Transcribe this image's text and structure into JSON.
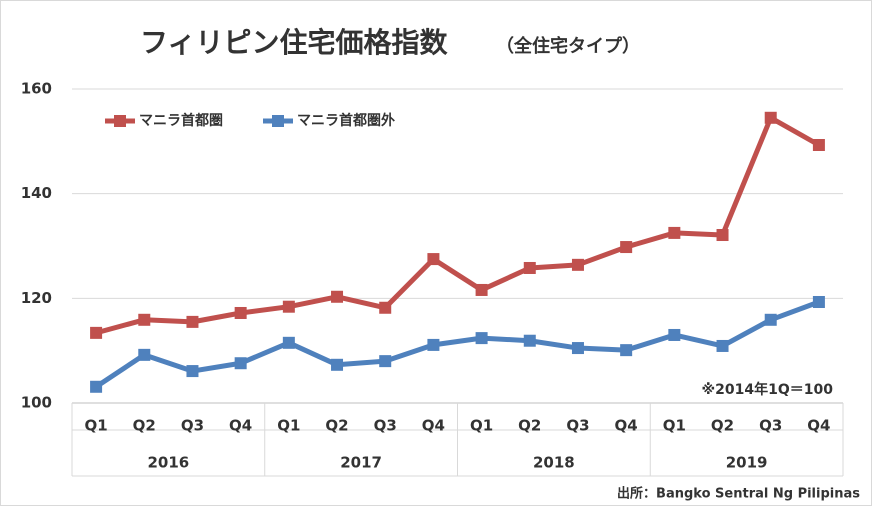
{
  "chart_data": {
    "type": "line",
    "title": "フィリピン住宅価格指数",
    "subtitle": "（全住宅タイプ）",
    "categories": [
      "Q1",
      "Q2",
      "Q3",
      "Q4",
      "Q1",
      "Q2",
      "Q3",
      "Q4",
      "Q1",
      "Q2",
      "Q3",
      "Q4",
      "Q1",
      "Q2",
      "Q3",
      "Q4"
    ],
    "category_groups": [
      "2016",
      "2017",
      "2018",
      "2019"
    ],
    "series": [
      {
        "name": "マニラ首都圏",
        "color": "#c0504d",
        "values": [
          113.4,
          115.9,
          115.5,
          117.2,
          118.4,
          120.3,
          118.2,
          127.5,
          121.6,
          125.8,
          126.4,
          129.8,
          132.5,
          132.1,
          154.5,
          149.3
        ]
      },
      {
        "name": "マニラ首都圏外",
        "color": "#4f81bd",
        "values": [
          103.1,
          109.2,
          106.1,
          107.6,
          111.5,
          107.3,
          108.0,
          111.1,
          112.4,
          111.9,
          110.5,
          110.1,
          113.0,
          110.9,
          115.9,
          119.3
        ]
      }
    ],
    "ylim": [
      100,
      160
    ],
    "yticks": [
      100,
      120,
      140,
      160
    ],
    "grid": true,
    "legend": "top-left",
    "annotation": "※2014年1Q＝100",
    "source": "出所：Bangko Sentral Ng Pilipinas"
  }
}
